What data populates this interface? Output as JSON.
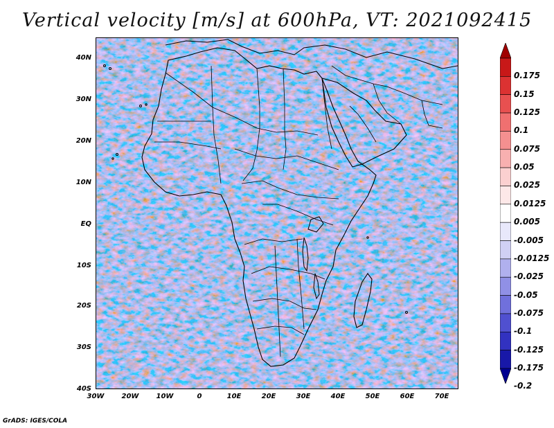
{
  "title": "Vertical velocity [m/s] at 600hPa, VT: 2021092415",
  "credit": "GrADS: IGES/COLA",
  "lat_ticks": [
    "40N",
    "30N",
    "20N",
    "10N",
    "EQ",
    "10S",
    "20S",
    "30S",
    "40S"
  ],
  "lon_ticks": [
    "30W",
    "20W",
    "10W",
    "0",
    "10E",
    "20E",
    "30E",
    "40E",
    "50E",
    "60E",
    "70E"
  ],
  "colorbar": {
    "levels": [
      "0.175",
      "0.15",
      "0.125",
      "0.1",
      "0.075",
      "0.05",
      "0.025",
      "0.0125",
      "0.005",
      "-0.005",
      "-0.0125",
      "-0.025",
      "-0.05",
      "-0.075",
      "-0.1",
      "-0.125",
      "-0.175",
      "-0.2"
    ],
    "colors": [
      "#a00000",
      "#c81818",
      "#dc3232",
      "#e85050",
      "#f07070",
      "#f49090",
      "#f8b0b0",
      "#fbd0d0",
      "#fde8e8",
      "#ffffff",
      "#e8e8fb",
      "#d0d0f4",
      "#b0b0ee",
      "#9090e6",
      "#7070dc",
      "#5050d0",
      "#3232c0",
      "#1818a8",
      "#000090"
    ]
  },
  "colors": {
    "positive": "#d04848",
    "negative": "#6a6ae0",
    "coast": "#000000"
  }
}
